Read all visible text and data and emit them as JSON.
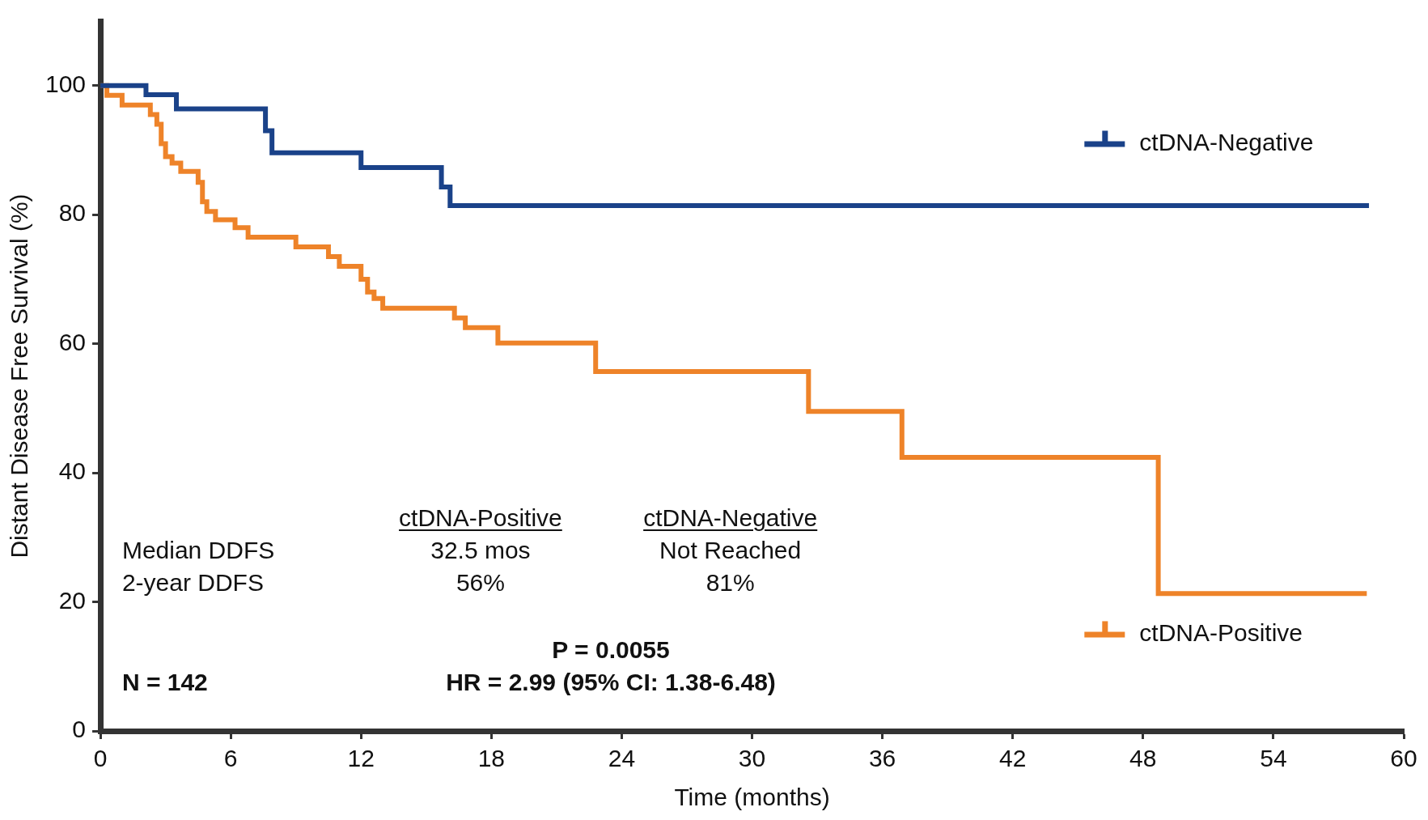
{
  "chart_data": {
    "type": "step",
    "xlabel": "Time (months)",
    "ylabel": "Distant Disease Free Survival (%)",
    "xlim": [
      0,
      60
    ],
    "xticks": [
      0,
      6,
      12,
      18,
      24,
      30,
      36,
      42,
      48,
      54,
      60
    ],
    "ylim": [
      0,
      110
    ],
    "yticks": [
      0,
      20,
      40,
      60,
      80,
      100
    ],
    "grid": false,
    "legend": "right",
    "marker": "none",
    "line_style": "solid",
    "series": [
      {
        "name": "ctDNA-Negative",
        "color": "#1a4289",
        "x": [
          0,
          2.1,
          3.5,
          7.6,
          7.9,
          12,
          15.7,
          16.1,
          58.4
        ],
        "values": [
          100,
          98.6,
          96.4,
          93,
          89.6,
          87.3,
          84.3,
          81.4,
          81.4
        ]
      },
      {
        "name": "ctDNA-Positive",
        "color": "#ee8329",
        "x": [
          0,
          0.3,
          1,
          2.3,
          2.6,
          2.8,
          3,
          3.3,
          3.7,
          4.5,
          4.7,
          4.9,
          5.3,
          6.2,
          6.8,
          9,
          10.5,
          11,
          12,
          12.3,
          12.6,
          13,
          16.3,
          16.8,
          18.3,
          22.8,
          32.6,
          36.9,
          48.7,
          58.3
        ],
        "values": [
          100,
          98.5,
          97,
          95.5,
          94,
          91,
          89,
          88,
          86.7,
          85,
          82,
          80.5,
          79.2,
          78,
          76.5,
          75,
          73.5,
          72,
          70,
          68,
          67,
          65.5,
          64,
          62.5,
          60.1,
          55.7,
          49.5,
          42.4,
          21.3,
          21.3
        ]
      }
    ],
    "annotations": [
      "ctDNA-Positive",
      "ctDNA-Negative",
      "Median DDFS",
      "32.5 mos",
      "Not Reached",
      "2-year DDFS",
      "56%",
      "81%",
      "P = 0.0055",
      "N = 142",
      "HR = 2.99 (95% CI: 1.38-6.48)"
    ]
  }
}
